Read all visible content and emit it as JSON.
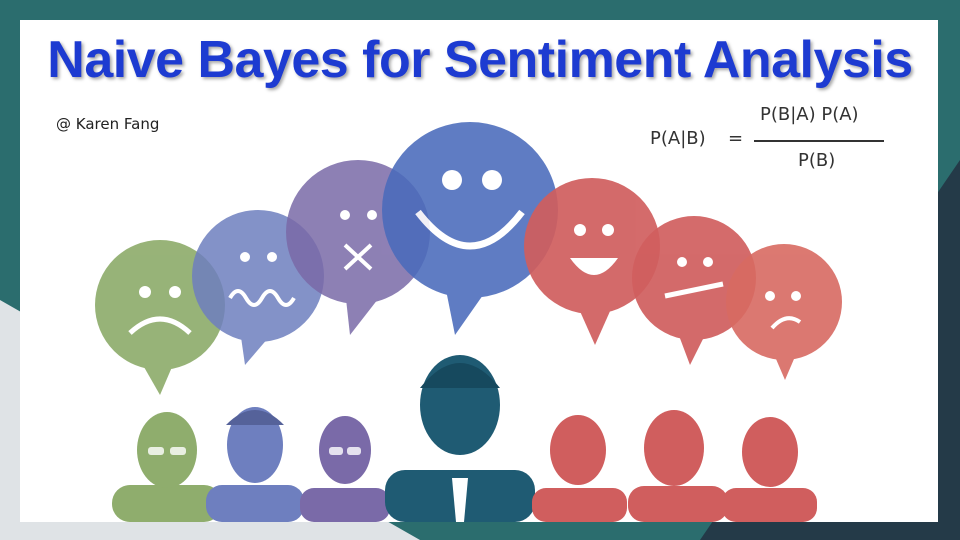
{
  "title": "Naive Bayes for Sentiment Analysis",
  "author": "@ Karen Fang",
  "formula": {
    "lhs": "P(A|B)",
    "equals": "=",
    "numerator": "P(B|A) P(A)",
    "denominator": "P(B)"
  },
  "colors": {
    "title": "#1d3bd1",
    "green": "#8fad6d",
    "blue_violet": "#6e7fbf",
    "purple": "#7a6aa8",
    "blue": "#4a6bbb",
    "red": "#d05e5e",
    "navy": "#1f5b73"
  },
  "icons": [
    "sad-face-icon",
    "worried-face-icon",
    "dizzy-face-icon",
    "smile-face-icon",
    "grin-face-icon",
    "neutral-face-icon",
    "frown-face-icon",
    "person-icon"
  ]
}
